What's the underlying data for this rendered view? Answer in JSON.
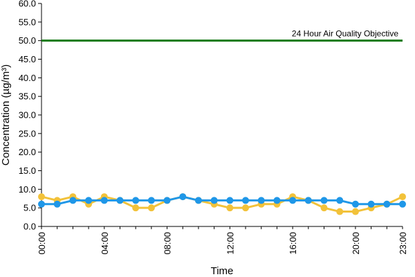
{
  "chart_data": {
    "type": "line",
    "xlabel": "Time",
    "ylabel": "Concentration (µg/m³)",
    "ylim": [
      0,
      60
    ],
    "y_ticks": [
      "0.0",
      "5.0",
      "10.0",
      "15.0",
      "20.0",
      "25.0",
      "30.0",
      "35.0",
      "40.0",
      "45.0",
      "50.0",
      "55.0",
      "60.0"
    ],
    "x_hours": [
      0,
      1,
      2,
      3,
      4,
      5,
      6,
      7,
      8,
      9,
      10,
      11,
      12,
      13,
      14,
      15,
      16,
      17,
      18,
      19,
      20,
      21,
      22,
      23
    ],
    "x_tick_labels": [
      {
        "hour": 0,
        "label": "00:00"
      },
      {
        "hour": 4,
        "label": "04:00"
      },
      {
        "hour": 8,
        "label": "08:00"
      },
      {
        "hour": 12,
        "label": "12:00"
      },
      {
        "hour": 16,
        "label": "16:00"
      },
      {
        "hour": 20,
        "label": "20:00"
      },
      {
        "hour": 23,
        "label": "23:00"
      }
    ],
    "grid": false,
    "legend": "none",
    "series": [
      {
        "color": "#f2c23a",
        "values": [
          8,
          7,
          8,
          6,
          8,
          7,
          5,
          5,
          7,
          8,
          7,
          6,
          5,
          5,
          6,
          6,
          8,
          7,
          5,
          4,
          4,
          5,
          6,
          8
        ]
      },
      {
        "color": "#1f97e8",
        "values": [
          6,
          6,
          7,
          7,
          7,
          7,
          7,
          7,
          7,
          8,
          7,
          7,
          7,
          7,
          7,
          7,
          7,
          7,
          7,
          7,
          6,
          6,
          6,
          6
        ]
      }
    ],
    "reference_line": {
      "value": 50,
      "label": "24 Hour Air Quality Objective",
      "color": "#127a12"
    }
  }
}
